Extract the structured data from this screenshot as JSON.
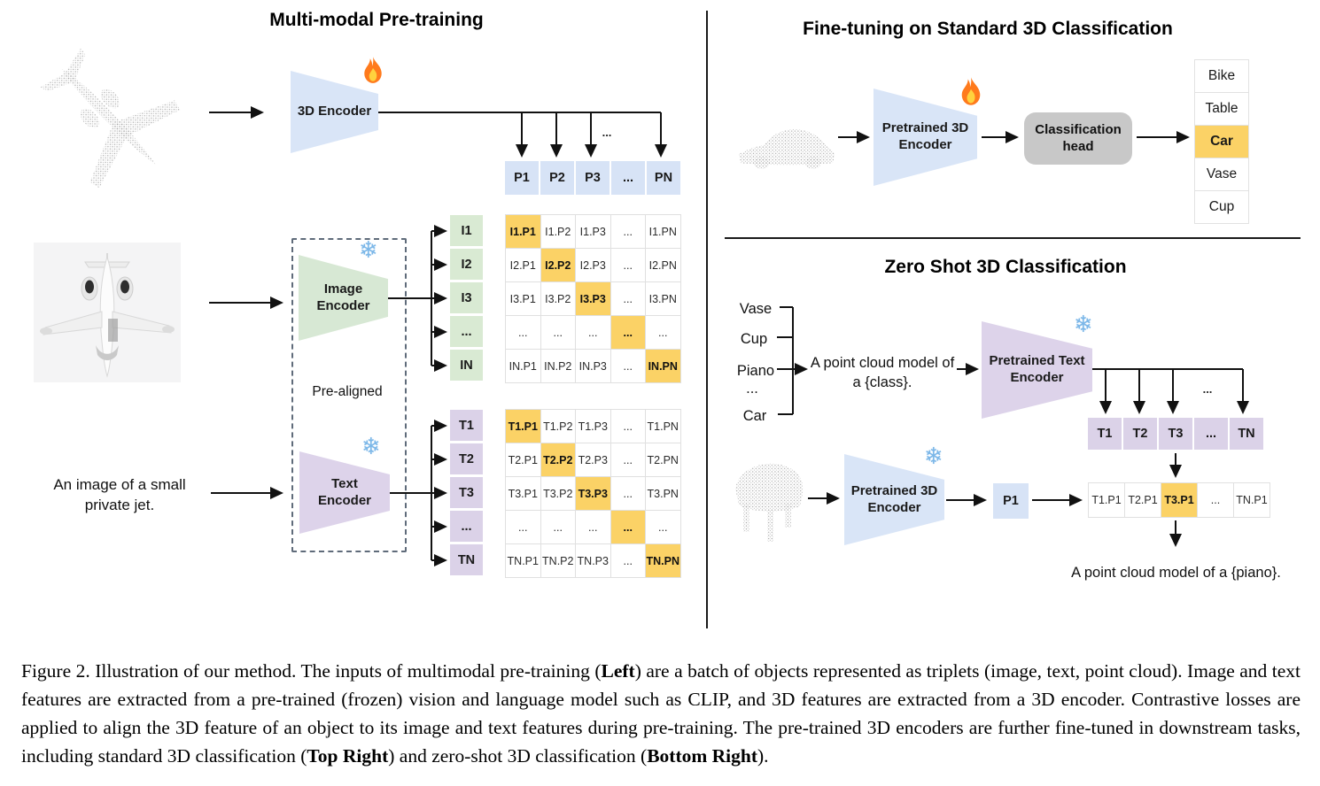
{
  "left_panel": {
    "title": "Multi-modal Pre-training",
    "encoder_3d_label": "3D Encoder",
    "image_encoder_label": "Image Encoder",
    "text_encoder_label": "Text Encoder",
    "pre_aligned_label": "Pre-aligned",
    "image_caption_line1": "An image of a small",
    "image_caption_line2": "private jet.",
    "dots": "...",
    "p_row": [
      "P1",
      "P2",
      "P3",
      "...",
      "PN"
    ],
    "image_feature_labels": [
      "I1",
      "I2",
      "I3",
      "...",
      "IN"
    ],
    "image_matrix": [
      [
        "I1.P1",
        "I1.P2",
        "I1.P3",
        "...",
        "I1.PN"
      ],
      [
        "I2.P1",
        "I2.P2",
        "I2.P3",
        "...",
        "I2.PN"
      ],
      [
        "I3.P1",
        "I3.P2",
        "I3.P3",
        "...",
        "I3.PN"
      ],
      [
        "...",
        "...",
        "...",
        "...",
        "..."
      ],
      [
        "IN.P1",
        "IN.P2",
        "IN.P3",
        "...",
        "IN.PN"
      ]
    ],
    "text_feature_labels": [
      "T1",
      "T2",
      "T3",
      "...",
      "TN"
    ],
    "text_matrix": [
      [
        "T1.P1",
        "T1.P2",
        "T1.P3",
        "...",
        "T1.PN"
      ],
      [
        "T2.P1",
        "T2.P2",
        "T2.P3",
        "...",
        "T2.PN"
      ],
      [
        "T3.P1",
        "T3.P2",
        "T3.P3",
        "...",
        "T3.PN"
      ],
      [
        "...",
        "...",
        "...",
        "...",
        "..."
      ],
      [
        "TN.P1",
        "TN.P2",
        "TN.P3",
        "...",
        "TN.PN"
      ]
    ]
  },
  "top_right_panel": {
    "title": "Fine-tuning on Standard 3D Classification",
    "encoder_label": "Pretrained 3D Encoder",
    "classification_head_label": "Classification head",
    "classes": [
      {
        "label": "Bike"
      },
      {
        "label": "Table"
      },
      {
        "label": "Car",
        "highlight": true
      },
      {
        "label": "Vase"
      },
      {
        "label": "Cup"
      }
    ]
  },
  "bottom_right_panel": {
    "title": "Zero Shot 3D Classification",
    "class_words": [
      "Vase",
      "Cup",
      "Piano",
      "...",
      "Car"
    ],
    "prompt_line1": "A point cloud model of",
    "prompt_line2": "a {class}.",
    "text_encoder_label": "Pretrained Text Encoder",
    "encoder_3d_label": "Pretrained 3D Encoder",
    "p_cell": "P1",
    "dots": "...",
    "t_row": [
      "T1",
      "T2",
      "T3",
      "...",
      "TN"
    ],
    "similarity_row": [
      {
        "label": "T1.P1"
      },
      {
        "label": "T2.P1"
      },
      {
        "label": "T3.P1",
        "highlight": true
      },
      {
        "label": "..."
      },
      {
        "label": "TN.P1"
      }
    ],
    "result_text": "A point cloud model of a {piano}."
  },
  "caption": {
    "parts": [
      {
        "text": "Figure 2. Illustration of our method. The inputs of multimodal pre-training ("
      },
      {
        "text": "Left",
        "bold": true
      },
      {
        "text": ") are a batch of objects represented as triplets (image, text, point cloud).  Image and text features are extracted from a pre-trained (frozen) vision and language model such as CLIP, and 3D features are extracted from a 3D encoder.  Contrastive losses are applied to align the 3D feature of an object to its image and text features during pre-training.  The pre-trained 3D encoders are further fine-tuned in downstream tasks, including standard 3D classification ("
      },
      {
        "text": "Top Right",
        "bold": true
      },
      {
        "text": ") and zero-shot 3D classification ("
      },
      {
        "text": "Bottom Right",
        "bold": true
      },
      {
        "text": ")."
      }
    ]
  },
  "colors": {
    "encoder_blue": "#d9e5f7",
    "encoder_green": "#d7e8d4",
    "encoder_purple": "#ddd3ea",
    "highlight_orange": "#fbd266",
    "head_gray": "#c8c8c8"
  }
}
